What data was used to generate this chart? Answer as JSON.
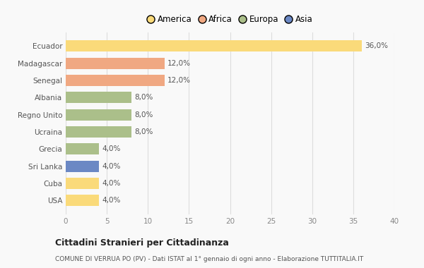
{
  "countries": [
    "Ecuador",
    "Madagascar",
    "Senegal",
    "Albania",
    "Regno Unito",
    "Ucraina",
    "Grecia",
    "Sri Lanka",
    "Cuba",
    "USA"
  ],
  "values": [
    36.0,
    12.0,
    12.0,
    8.0,
    8.0,
    8.0,
    4.0,
    4.0,
    4.0,
    4.0
  ],
  "continents": [
    "America",
    "Africa",
    "Africa",
    "Europa",
    "Europa",
    "Europa",
    "Europa",
    "Asia",
    "America",
    "America"
  ],
  "colors": {
    "America": "#FADA7A",
    "Africa": "#F0A882",
    "Europa": "#ABBF8A",
    "Asia": "#6B88C4"
  },
  "legend_order": [
    "America",
    "Africa",
    "Europa",
    "Asia"
  ],
  "xlim": [
    0,
    40
  ],
  "xticks": [
    0,
    5,
    10,
    15,
    20,
    25,
    30,
    35,
    40
  ],
  "title1": "Cittadini Stranieri per Cittadinanza",
  "title2": "COMUNE DI VERRUA PO (PV) - Dati ISTAT al 1° gennaio di ogni anno - Elaborazione TUTTITALIA.IT",
  "background_color": "#f9f9f9",
  "grid_color": "#dddddd",
  "bar_height": 0.65,
  "label_fontsize": 7.5,
  "ytick_fontsize": 7.5,
  "xtick_fontsize": 7.5,
  "legend_fontsize": 8.5,
  "title1_fontsize": 9,
  "title2_fontsize": 6.5
}
